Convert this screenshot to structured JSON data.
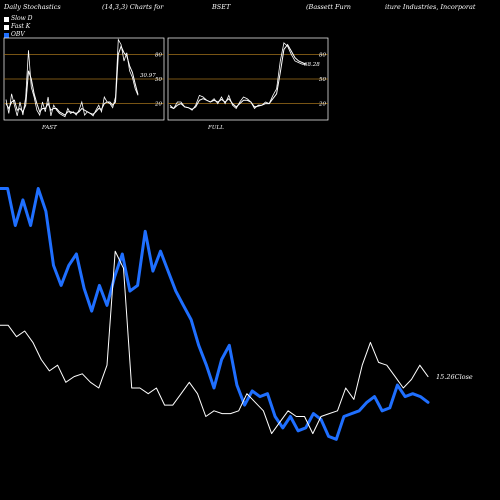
{
  "header": {
    "h1": "Daily Stochastics",
    "h2": "(14,3,3) Charts for",
    "h3": "BSET",
    "h4": "(Bassett Furn",
    "h5": "iture  Industries, Incorporat"
  },
  "legend": {
    "items": [
      {
        "label": "Slow D",
        "color": "#ffffff"
      },
      {
        "label": "Fast K",
        "color": "#ffffff"
      },
      {
        "label": "OBV",
        "color": "#1f6fff"
      }
    ]
  },
  "panels": {
    "fast": {
      "label": "FAST",
      "value_label": "30.97"
    },
    "full": {
      "label": "FULL",
      "value_label": "68.28"
    },
    "levels": [
      80,
      50,
      20
    ]
  },
  "close_label": "15.26Close",
  "chart_data": [
    {
      "type": "line",
      "title": "FAST",
      "ylim": [
        0,
        100
      ],
      "series": [
        {
          "name": "Fast K",
          "values": [
            25,
            8,
            32,
            18,
            5,
            22,
            6,
            28,
            85,
            40,
            28,
            12,
            6,
            22,
            10,
            28,
            5,
            18,
            12,
            8,
            6,
            4,
            14,
            8,
            10,
            6,
            12,
            22,
            6,
            10,
            8,
            5,
            12,
            18,
            10,
            28,
            22,
            20,
            15,
            28,
            98,
            92,
            72,
            82,
            60,
            52,
            38,
            30
          ]
        },
        {
          "name": "Slow D",
          "values": [
            20,
            14,
            22,
            24,
            12,
            14,
            10,
            18,
            60,
            50,
            32,
            20,
            10,
            14,
            14,
            20,
            12,
            14,
            14,
            10,
            8,
            6,
            10,
            10,
            9,
            8,
            10,
            14,
            12,
            10,
            8,
            7,
            10,
            14,
            13,
            20,
            22,
            22,
            18,
            22,
            80,
            90,
            82,
            78,
            66,
            58,
            44,
            31
          ]
        }
      ]
    },
    {
      "type": "line",
      "title": "FULL",
      "ylim": [
        0,
        100
      ],
      "series": [
        {
          "name": "Fast K",
          "values": [
            18,
            14,
            22,
            22,
            16,
            15,
            12,
            18,
            30,
            28,
            24,
            22,
            26,
            20,
            28,
            20,
            30,
            18,
            14,
            22,
            28,
            26,
            22,
            14,
            18,
            18,
            22,
            20,
            30,
            38,
            72,
            94,
            90,
            80,
            72,
            70,
            68,
            68
          ]
        },
        {
          "name": "Slow D",
          "values": [
            16,
            14,
            18,
            20,
            16,
            15,
            13,
            16,
            24,
            26,
            24,
            22,
            24,
            22,
            25,
            22,
            26,
            20,
            16,
            20,
            24,
            24,
            22,
            16,
            17,
            18,
            20,
            20,
            26,
            32,
            58,
            86,
            92,
            84,
            76,
            72,
            70,
            68
          ]
        }
      ]
    },
    {
      "type": "line",
      "title": "",
      "series": [
        {
          "name": "OBV",
          "color": "#1f6fff",
          "values": [
            90,
            90,
            77,
            86,
            77,
            90,
            82,
            63,
            56,
            63,
            67,
            55,
            47,
            56,
            49,
            59,
            67,
            54,
            56,
            75,
            61,
            68,
            61,
            54,
            49,
            44,
            35,
            28,
            20,
            30,
            35,
            21,
            14,
            19,
            17,
            18,
            10,
            6,
            10,
            5,
            6,
            11,
            9,
            3,
            2,
            10,
            11,
            12,
            15,
            17,
            12,
            13,
            21,
            17,
            18,
            17,
            15
          ]
        },
        {
          "name": "Close",
          "color": "#ffffff",
          "values": [
            42,
            42,
            38,
            40,
            36,
            30,
            26,
            28,
            22,
            24,
            25,
            22,
            20,
            28,
            68,
            62,
            20,
            20,
            18,
            20,
            14,
            14,
            18,
            22,
            18,
            10,
            12,
            11,
            11,
            12,
            18,
            15,
            12,
            4,
            8,
            12,
            10,
            10,
            4,
            10,
            11,
            12,
            20,
            16,
            28,
            36,
            29,
            28,
            24,
            20,
            23,
            28,
            24
          ]
        }
      ]
    }
  ]
}
